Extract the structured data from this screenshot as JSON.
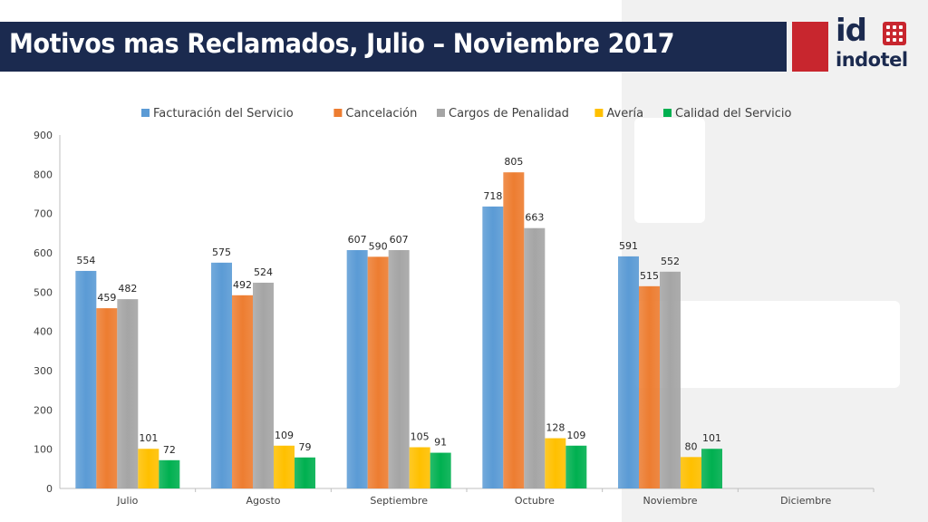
{
  "header": {
    "title": "Motivos mas Reclamados, Julio – Noviembre 2017"
  },
  "logo": {
    "id_text": "id",
    "wordmark": "indotel"
  },
  "colors": {
    "title_bar": "#1b2a4f",
    "logo_red": "#c8262e",
    "series": [
      "#5b9bd5",
      "#ed7d31",
      "#a5a5a5",
      "#ffc000",
      "#00b050"
    ]
  },
  "chart_data": {
    "type": "bar",
    "title": "",
    "xlabel": "",
    "ylabel": "",
    "categories": [
      "Julio",
      "Agosto",
      "Septiembre",
      "Octubre",
      "Noviembre",
      "Diciembre"
    ],
    "series": [
      {
        "name": "Facturación del Servicio",
        "values": [
          554,
          575,
          607,
          718,
          591,
          null
        ]
      },
      {
        "name": "Cancelación",
        "values": [
          459,
          492,
          590,
          805,
          515,
          null
        ]
      },
      {
        "name": "Cargos de Penalidad",
        "values": [
          482,
          524,
          607,
          663,
          552,
          null
        ]
      },
      {
        "name": "Avería",
        "values": [
          101,
          109,
          105,
          128,
          80,
          null
        ]
      },
      {
        "name": "Calidad del Servicio",
        "values": [
          72,
          79,
          91,
          109,
          101,
          null
        ]
      }
    ],
    "ylim": [
      0,
      900
    ],
    "yticks": [
      0,
      100,
      200,
      300,
      400,
      500,
      600,
      700,
      800,
      900
    ],
    "grid": false,
    "legend_position": "top",
    "data_labels": true
  }
}
